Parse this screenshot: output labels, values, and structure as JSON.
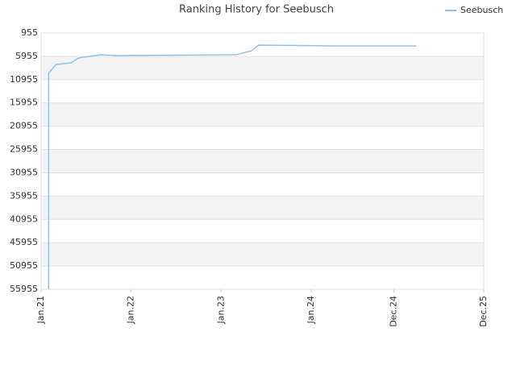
{
  "chart_data": {
    "type": "line",
    "title": "Ranking History for Seebusch",
    "x": [
      "2021-02",
      "2021-02",
      "2021-03",
      "2021-05",
      "2021-06",
      "2021-09",
      "2021-11",
      "2023-03",
      "2023-05",
      "2023-06",
      "2024-04",
      "2025-03"
    ],
    "series": [
      {
        "name": "Seebusch",
        "color": "#8cc4f0",
        "values": [
          55955,
          9600,
          7700,
          7350,
          6300,
          5600,
          5800,
          5600,
          4800,
          3550,
          3720,
          3720
        ]
      }
    ],
    "xlim": [
      "2021-01",
      "2025-12"
    ],
    "xticks": [
      {
        "value": "2021-01",
        "label": "Jan.21"
      },
      {
        "value": "2022-01",
        "label": "Jan.22"
      },
      {
        "value": "2023-01",
        "label": "Jan.23"
      },
      {
        "value": "2024-01",
        "label": "Jan.24"
      },
      {
        "value": "2024-12",
        "label": "Dec.24"
      },
      {
        "value": "2025-12",
        "label": "Dec.25"
      }
    ],
    "ylim": [
      55955,
      955
    ],
    "yticks": [
      955,
      5955,
      10955,
      15955,
      20955,
      25955,
      30955,
      35955,
      40955,
      45955,
      50955,
      55955
    ],
    "grid": true,
    "legend": "top-right"
  }
}
